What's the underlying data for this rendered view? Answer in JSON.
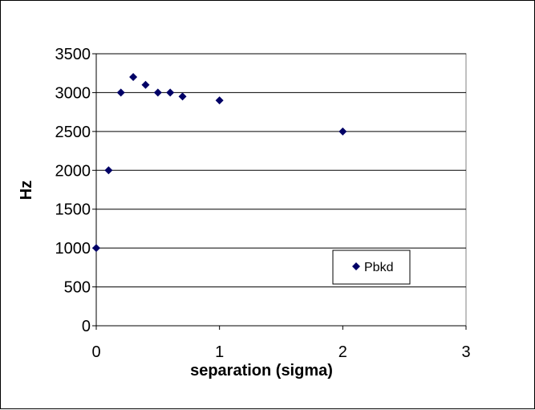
{
  "chart_data": {
    "type": "scatter",
    "title": "",
    "xlabel": "separation (sigma)",
    "ylabel": "Hz",
    "xlim": [
      0,
      3
    ],
    "ylim": [
      0,
      3500
    ],
    "xticks": [
      0,
      1,
      2,
      3
    ],
    "yticks": [
      0,
      500,
      1000,
      1500,
      2000,
      2500,
      3000,
      3500
    ],
    "grid": "horizontal",
    "legend_position": "lower-right",
    "series": [
      {
        "name": "Pbkd",
        "color": "#000066",
        "marker": "diamond",
        "points": [
          {
            "x": 0,
            "y": 1000
          },
          {
            "x": 0.1,
            "y": 2000
          },
          {
            "x": 0.2,
            "y": 3000
          },
          {
            "x": 0.3,
            "y": 3200
          },
          {
            "x": 0.4,
            "y": 3100
          },
          {
            "x": 0.5,
            "y": 3000
          },
          {
            "x": 0.6,
            "y": 3000
          },
          {
            "x": 0.7,
            "y": 2950
          },
          {
            "x": 1.0,
            "y": 2900
          },
          {
            "x": 2.0,
            "y": 2500
          }
        ]
      }
    ]
  }
}
